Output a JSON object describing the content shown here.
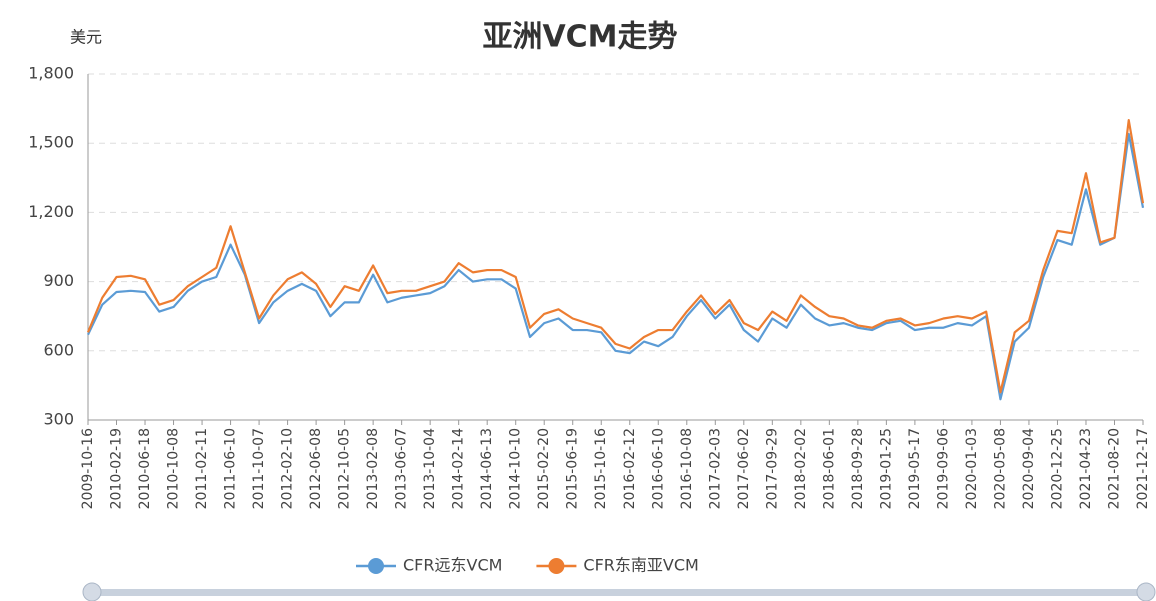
{
  "chart_data": {
    "type": "line",
    "title": "亚洲VCM走势",
    "y_axis_label": "美元",
    "categories": [
      "2009-10-16",
      null,
      "2010-02-19",
      null,
      "2010-06-18",
      null,
      "2010-10-08",
      null,
      "2011-02-11",
      null,
      "2011-06-10",
      null,
      "2011-10-07",
      null,
      "2012-02-10",
      null,
      "2012-06-08",
      null,
      "2012-10-05",
      null,
      "2013-02-08",
      null,
      "2013-06-07",
      null,
      "2013-10-04",
      null,
      "2014-02-14",
      null,
      "2014-06-13",
      null,
      "2014-10-10",
      null,
      "2015-02-20",
      null,
      "2015-06-19",
      null,
      "2015-10-16",
      null,
      "2016-02-12",
      null,
      "2016-06-10",
      null,
      "2016-10-08",
      null,
      "2017-02-03",
      null,
      "2017-06-02",
      null,
      "2017-09-29",
      null,
      "2018-02-02",
      null,
      "2018-06-01",
      null,
      "2018-09-28",
      null,
      "2019-01-25",
      null,
      "2019-05-17",
      null,
      "2019-09-06",
      null,
      "2020-01-03",
      null,
      "2020-05-08",
      null,
      "2020-09-04",
      null,
      "2020-12-25",
      null,
      "2021-04-23",
      null,
      "2021-08-20",
      null,
      "2021-12-17"
    ],
    "series": [
      {
        "name": "CFR远东VCM",
        "color": "#5b9bd5",
        "values": [
          670,
          800,
          855,
          860,
          855,
          770,
          790,
          860,
          900,
          920,
          1060,
          930,
          720,
          810,
          860,
          890,
          860,
          750,
          810,
          810,
          930,
          810,
          830,
          840,
          850,
          880,
          950,
          900,
          910,
          910,
          870,
          660,
          720,
          740,
          690,
          690,
          680,
          600,
          590,
          640,
          620,
          660,
          750,
          820,
          740,
          800,
          690,
          640,
          740,
          700,
          800,
          740,
          710,
          720,
          700,
          690,
          720,
          730,
          690,
          700,
          700,
          720,
          710,
          750,
          390,
          640,
          700,
          920,
          1080,
          1060,
          1300,
          1060,
          1090,
          1540,
          1220
        ]
      },
      {
        "name": "CFR东南亚VCM",
        "color": "#ed7d31",
        "values": [
          680,
          830,
          920,
          925,
          910,
          800,
          820,
          880,
          920,
          960,
          1140,
          940,
          740,
          840,
          910,
          940,
          890,
          790,
          880,
          860,
          970,
          850,
          860,
          860,
          880,
          900,
          980,
          940,
          950,
          950,
          920,
          700,
          760,
          780,
          740,
          720,
          700,
          630,
          610,
          660,
          690,
          690,
          770,
          840,
          760,
          820,
          720,
          690,
          770,
          730,
          840,
          790,
          750,
          740,
          710,
          700,
          730,
          740,
          710,
          720,
          740,
          750,
          740,
          770,
          420,
          680,
          730,
          950,
          1120,
          1110,
          1370,
          1070,
          1090,
          1600,
          1240
        ]
      }
    ],
    "ylim": [
      300,
      1800
    ],
    "yticks": [
      300,
      600,
      900,
      {
        "value": 1200,
        "label": "1,200"
      },
      {
        "value": 1500,
        "label": "1,500"
      },
      {
        "value": 1800,
        "label": "1,800"
      }
    ],
    "grid": true,
    "legend": "bottom"
  }
}
